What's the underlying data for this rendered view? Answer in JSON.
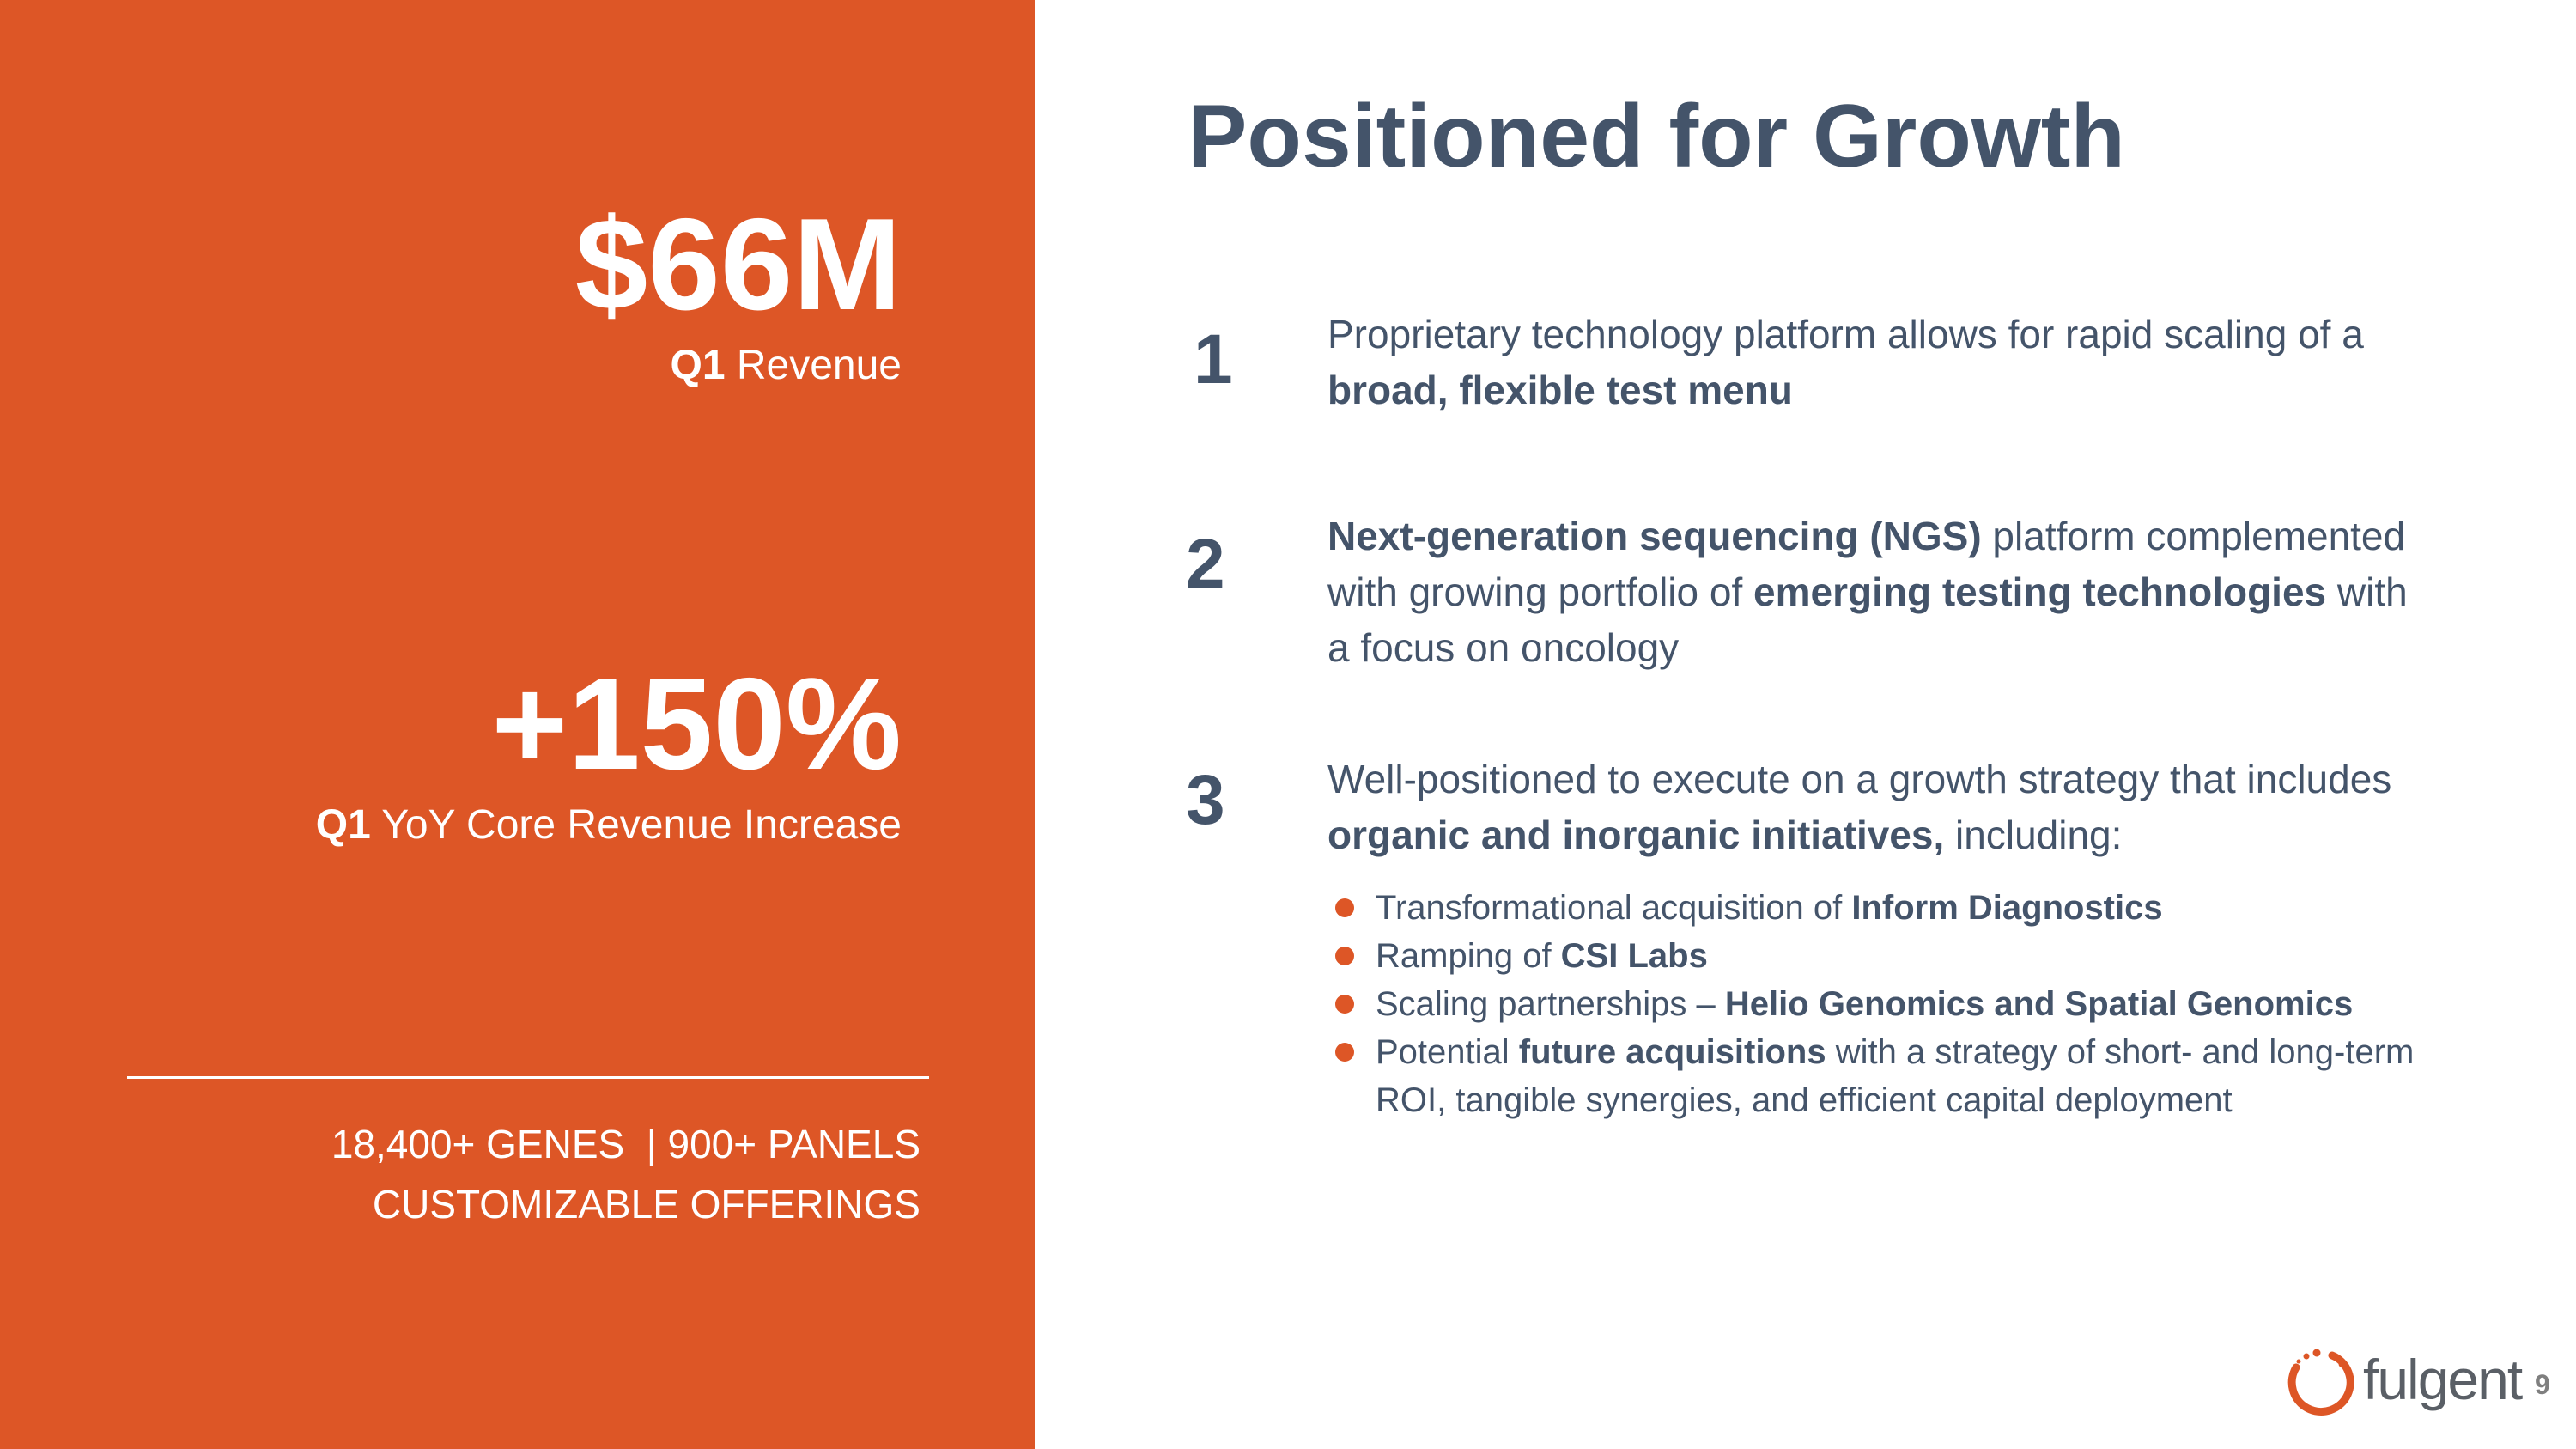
{
  "slide": {
    "title": "Positioned for Growth",
    "page_number": "9",
    "accent_color": "#dd5626",
    "text_color": "#44546a"
  },
  "left_panel": {
    "metric1": {
      "value": "$66M",
      "caption_bold": "Q1",
      "caption_rest": " Revenue"
    },
    "metric2": {
      "value": "+150%",
      "caption_bold": "Q1",
      "caption_rest": " YoY Core Revenue Increase"
    },
    "offerings_line1": "18,400+ GENES  | 900+ PANELS",
    "offerings_line2": "CUSTOMIZABLE OFFERINGS"
  },
  "points": [
    {
      "number": "1",
      "segments": [
        {
          "text": "Proprietary technology platform allows for rapid scaling of a ",
          "bold": false
        },
        {
          "text": "broad, flexible test menu",
          "bold": true
        }
      ]
    },
    {
      "number": "2",
      "segments": [
        {
          "text": "Next-generation sequencing (NGS)",
          "bold": true
        },
        {
          "text": " platform complemented with growing portfolio of ",
          "bold": false
        },
        {
          "text": "emerging testing technologies",
          "bold": true
        },
        {
          "text": " with a focus on oncology",
          "bold": false
        }
      ]
    },
    {
      "number": "3",
      "segments": [
        {
          "text": "Well-positioned to execute on a growth strategy that includes ",
          "bold": false
        },
        {
          "text": "organic and inorganic initiatives,",
          "bold": true
        },
        {
          "text": " including:",
          "bold": false
        }
      ]
    }
  ],
  "bullets": [
    [
      {
        "text": "Transformational acquisition of ",
        "bold": false
      },
      {
        "text": "Inform Diagnostics",
        "bold": true
      }
    ],
    [
      {
        "text": "Ramping of ",
        "bold": false
      },
      {
        "text": "CSI Labs",
        "bold": true
      }
    ],
    [
      {
        "text": "Scaling partnerships – ",
        "bold": false
      },
      {
        "text": "Helio Genomics and Spatial Genomics",
        "bold": true
      }
    ],
    [
      {
        "text": "Potential ",
        "bold": false
      },
      {
        "text": "future acquisitions",
        "bold": true
      },
      {
        "text": " with a strategy of short- and long-term ROI, tangible synergies, and efficient capital deployment",
        "bold": false
      }
    ]
  ],
  "logo": {
    "text": "fulgent",
    "icon": "fulgent-logo-icon"
  }
}
